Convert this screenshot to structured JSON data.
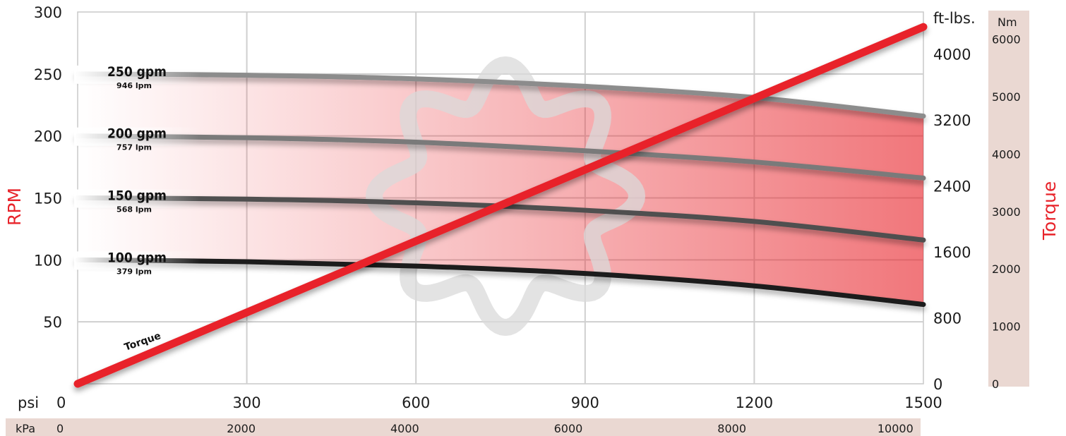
{
  "colors": {
    "torque": "#e8232a",
    "accent_band": "#ead8d2",
    "grid": "#cfcfcf",
    "text": "#1c1c1c"
  },
  "chart_data": {
    "type": "line",
    "x": {
      "label": "psi",
      "range": [
        0,
        1500
      ],
      "ticks": [
        0,
        300,
        600,
        900,
        1200,
        1500
      ]
    },
    "x2": {
      "label": "kPa",
      "ticks": [
        0,
        2000,
        4000,
        6000,
        8000,
        10000
      ]
    },
    "y_left": {
      "label": "RPM",
      "range": [
        0,
        300
      ],
      "ticks": [
        50,
        100,
        150,
        200,
        250,
        300
      ]
    },
    "y_right": {
      "unit": "ft-lbs.",
      "ticks": [
        0,
        800,
        1600,
        2400,
        3200,
        4000
      ]
    },
    "y_right2": {
      "unit": "Nm",
      "label": "Torque",
      "ticks": [
        0,
        1000,
        2000,
        3000,
        4000,
        5000,
        6000
      ]
    },
    "grid": true,
    "series": [
      {
        "name": "250 gpm",
        "sublabel": "946 lpm",
        "color": "#8c8c8c",
        "x": [
          0,
          300,
          600,
          900,
          1200,
          1500
        ],
        "y": [
          250,
          249,
          246,
          240,
          231,
          216
        ]
      },
      {
        "name": "200 gpm",
        "sublabel": "757 lpm",
        "color": "#7a7a7a",
        "x": [
          0,
          300,
          600,
          900,
          1200,
          1500
        ],
        "y": [
          200,
          198.5,
          195,
          188,
          179,
          166
        ]
      },
      {
        "name": "150 gpm",
        "sublabel": "568 lpm",
        "color": "#505050",
        "x": [
          0,
          300,
          600,
          900,
          1200,
          1500
        ],
        "y": [
          150,
          149,
          146,
          140,
          131,
          116
        ]
      },
      {
        "name": "100 gpm",
        "sublabel": "379 lpm",
        "color": "#1e1e1e",
        "x": [
          0,
          300,
          600,
          900,
          1200,
          1500
        ],
        "y": [
          100,
          98.5,
          95,
          89,
          79,
          64
        ]
      },
      {
        "name": "Torque",
        "color": "#e8232a",
        "axis": "right",
        "x": [
          0,
          1500
        ],
        "y": [
          0,
          4330
        ]
      }
    ]
  }
}
